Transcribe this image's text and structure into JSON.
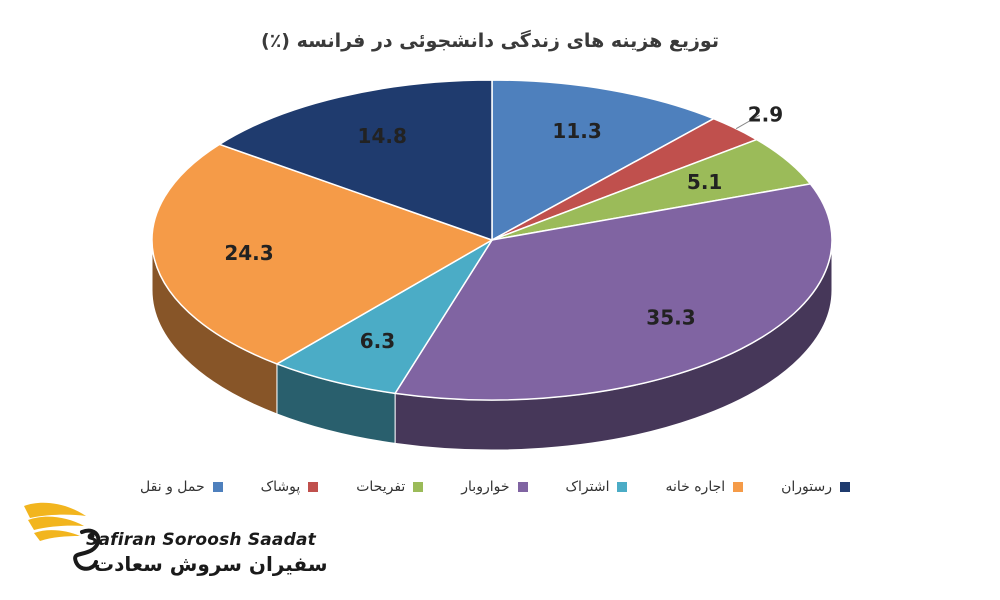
{
  "chart_data": {
    "type": "pie",
    "title": "توزیع هزینه های زندگی دانشجوئی در فرانسه (٪)",
    "categories": [
      "حمل و نقل",
      "پوشاک",
      "تفریحات",
      "خواروبار",
      "اشتراک",
      "اجاره خانه",
      "رستوران"
    ],
    "values": [
      11.3,
      2.9,
      5.1,
      35.3,
      6.3,
      24.3,
      14.8
    ],
    "value_labels": [
      "11.3",
      "2.9",
      "5.1",
      "35.3",
      "6.3",
      "24.3",
      "14.8"
    ],
    "colors": [
      "#4e80bd",
      "#c0504d",
      "#9bbb59",
      "#8064a2",
      "#4bacc6",
      "#f59b48",
      "#1f3b6e"
    ],
    "legend_position": "bottom",
    "style": "3d"
  },
  "logo": {
    "name_en": "Safiran Soroosh Saadat",
    "name_fa": "سفیران سروش سعادت",
    "accent": "#f2b51e"
  }
}
